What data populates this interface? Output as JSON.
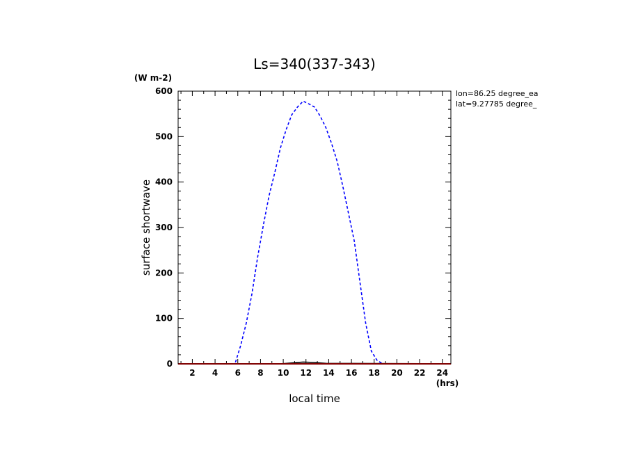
{
  "chart_data": {
    "type": "line",
    "title": "Ls=340(337-343)",
    "xlabel": "local time",
    "ylabel": "surface shortwave",
    "x_unit": "(hrs)",
    "y_unit": "(W m-2)",
    "xlim": [
      0.75,
      24.75
    ],
    "ylim": [
      0,
      600
    ],
    "x_ticks": [
      2,
      4,
      6,
      8,
      10,
      12,
      14,
      16,
      18,
      20,
      22,
      24
    ],
    "y_ticks": [
      0,
      100,
      200,
      300,
      400,
      500,
      600
    ],
    "annotations": [
      "lon=86.25 degree_ea",
      "lat=9.27785 degree_"
    ],
    "grid": false,
    "series": [
      {
        "color": "#0000ff",
        "style": "dashed",
        "x": [
          0.75,
          1.75,
          2.75,
          3.75,
          4.75,
          5.75,
          6.25,
          6.75,
          7.25,
          7.75,
          8.25,
          8.75,
          9.25,
          9.75,
          10.25,
          10.75,
          11.25,
          11.75,
          12.25,
          12.75,
          13.25,
          13.75,
          14.25,
          14.75,
          15.25,
          15.75,
          16.25,
          16.75,
          17.25,
          17.75,
          18.25,
          18.75,
          19.75,
          20.75,
          21.75,
          22.75,
          23.75,
          24.75
        ],
        "values": [
          0,
          0,
          0,
          0,
          0,
          0,
          40,
          90,
          155,
          235,
          305,
          370,
          420,
          475,
          515,
          548,
          565,
          578,
          572,
          565,
          545,
          520,
          485,
          445,
          390,
          330,
          270,
          180,
          90,
          28,
          8,
          0,
          0,
          0,
          0,
          0,
          0,
          0
        ]
      },
      {
        "color": "#000000",
        "style": "solid",
        "x": [
          0.75,
          9.75,
          10.75,
          11.75,
          12.75,
          13.75,
          24.75
        ],
        "values": [
          0,
          0,
          2,
          4,
          3,
          1,
          0
        ]
      },
      {
        "color": "#ff0000",
        "style": "solid",
        "x": [
          0.75,
          24.75
        ],
        "values": [
          0,
          0
        ]
      }
    ]
  }
}
